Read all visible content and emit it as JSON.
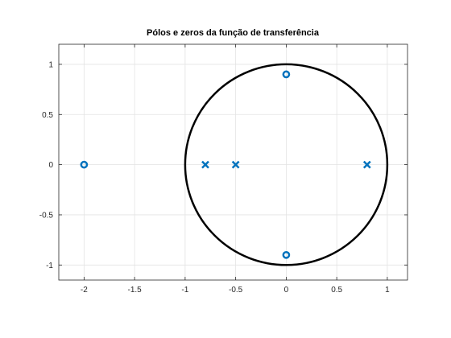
{
  "chart_data": {
    "type": "scatter",
    "title": "Pólos e zeros da função de transferência",
    "xlabel": "",
    "ylabel": "",
    "xlim": [
      -2.25,
      1.2
    ],
    "ylim": [
      -1.15,
      1.2
    ],
    "grid": true,
    "x_ticks": [
      -2,
      -1.5,
      -1,
      -0.5,
      0,
      0.5,
      1
    ],
    "y_ticks": [
      -1,
      -0.5,
      0,
      0.5,
      1
    ],
    "x_tick_labels": [
      "-2",
      "-1.5",
      "-1",
      "-0.5",
      "0",
      "0.5",
      "1"
    ],
    "y_tick_labels": [
      "-1",
      "-0.5",
      "0",
      "0.5",
      "1"
    ],
    "series": [
      {
        "marker": "x",
        "color": "#0072bd",
        "points": [
          [
            -0.8,
            0
          ],
          [
            -0.5,
            0
          ],
          [
            0.8,
            0
          ]
        ]
      },
      {
        "marker": "o",
        "color": "#0072bd",
        "points": [
          [
            -2,
            0
          ],
          [
            0,
            0.9
          ],
          [
            0,
            -0.9
          ]
        ]
      }
    ],
    "unit_circle": {
      "center": [
        0,
        0
      ],
      "radius": 1,
      "color": "#000000"
    }
  }
}
